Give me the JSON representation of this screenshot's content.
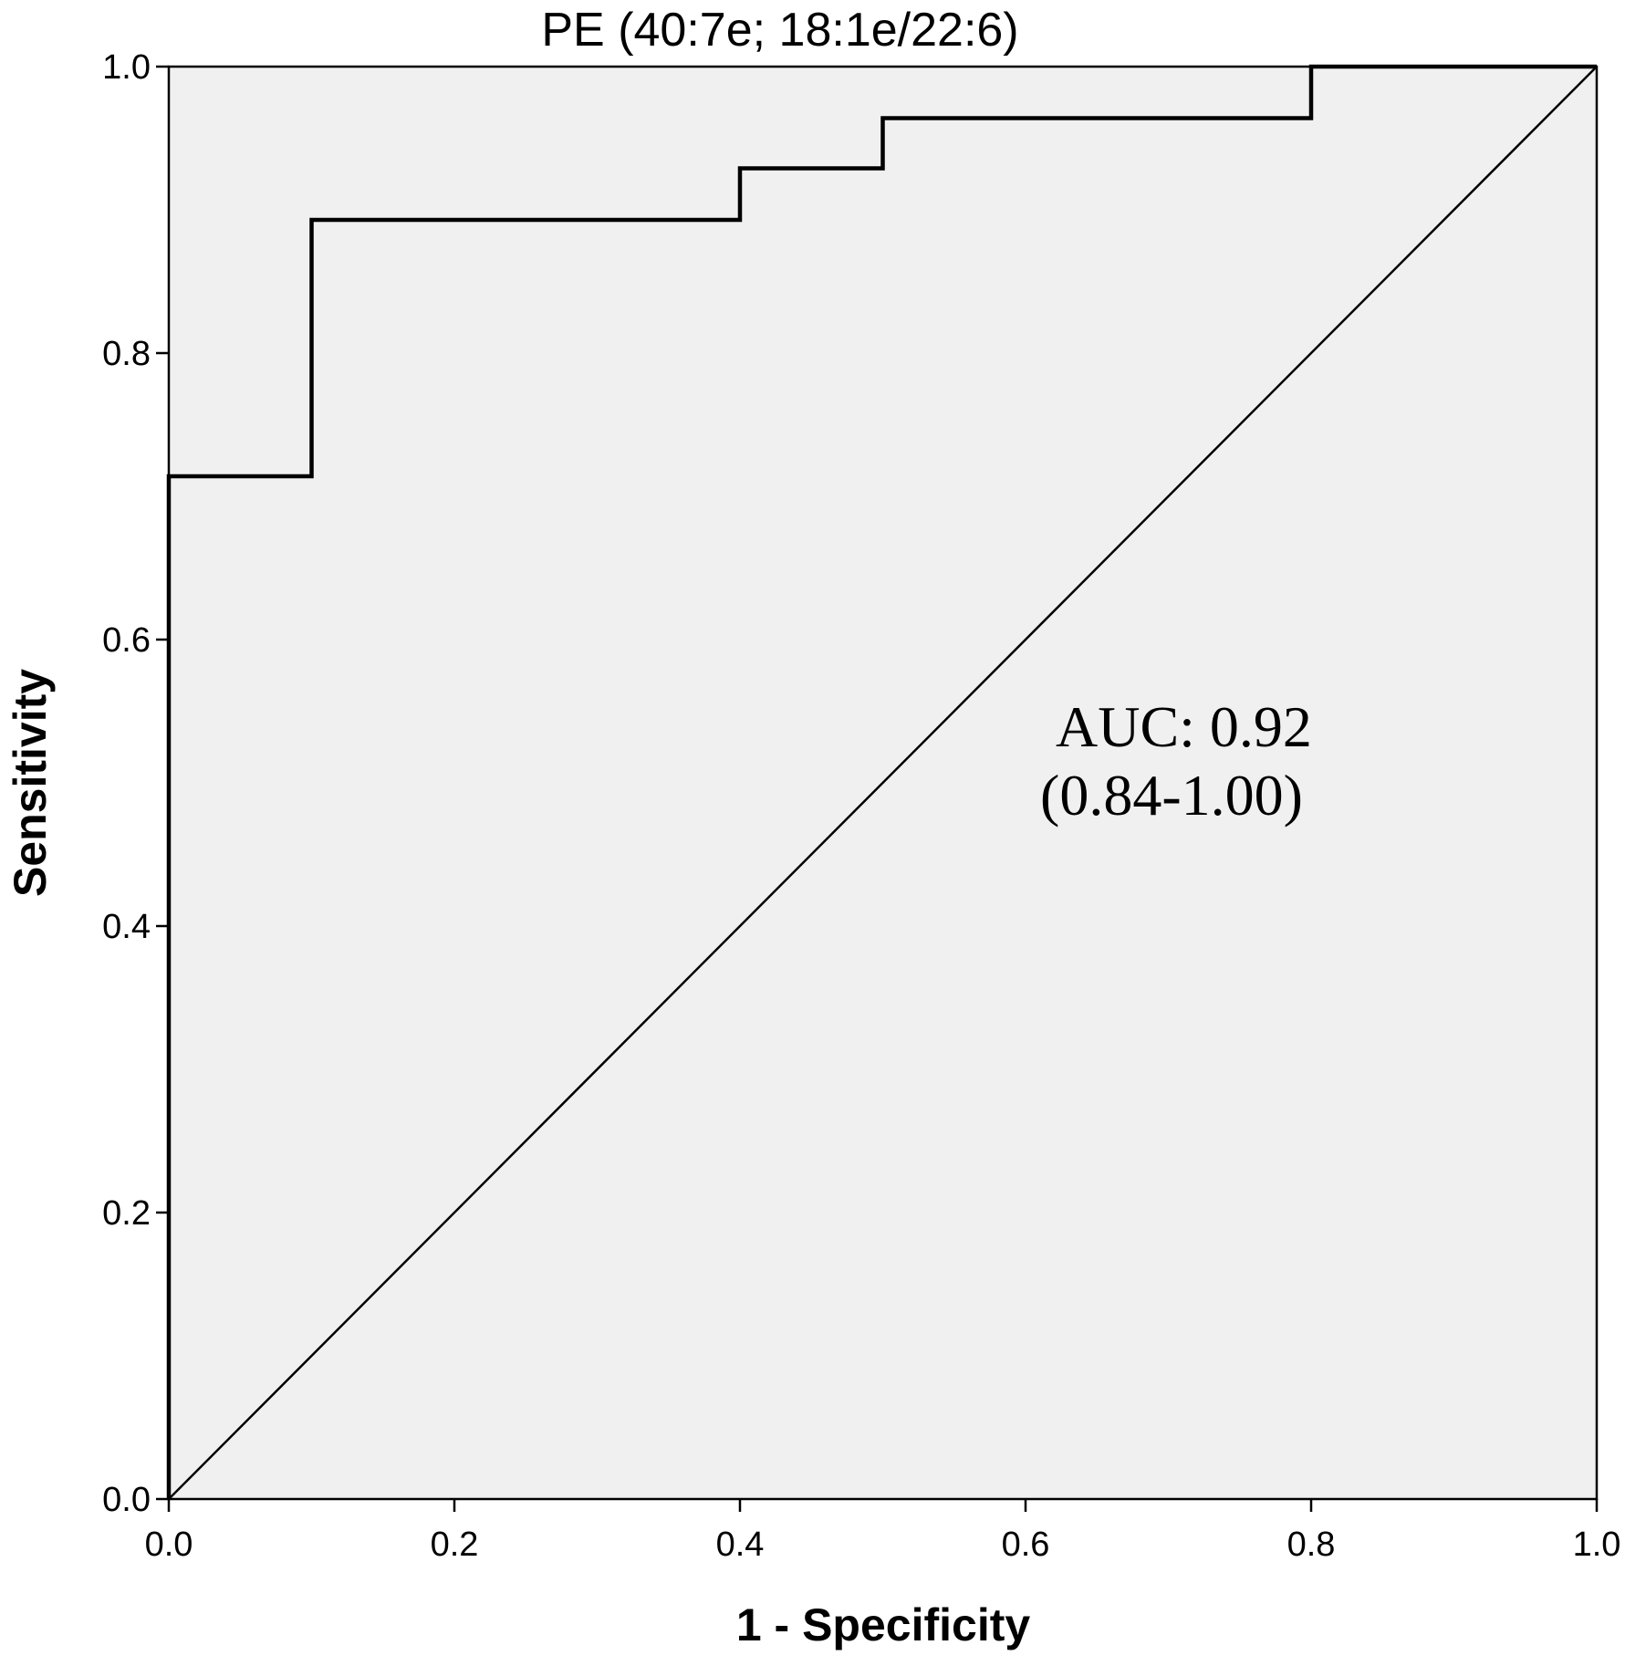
{
  "chart_data": {
    "type": "line",
    "title": "PE (40:7e; 18:1e/22:6)",
    "xlabel": "1 - Specificity",
    "ylabel": "Sensitivity",
    "xlim": [
      0,
      1
    ],
    "ylim": [
      0,
      1
    ],
    "x_ticks": [
      "0.0",
      "0.2",
      "0.4",
      "0.6",
      "0.8",
      "1.0"
    ],
    "y_ticks": [
      "0.0",
      "0.2",
      "0.4",
      "0.6",
      "0.8",
      "1.0"
    ],
    "grid": false,
    "series": [
      {
        "x": [
          0.0,
          0.0,
          0.1,
          0.1,
          0.4,
          0.4,
          0.5,
          0.5,
          0.8,
          0.8,
          1.0
        ],
        "y": [
          0.0,
          0.714,
          0.714,
          0.893,
          0.893,
          0.929,
          0.929,
          0.964,
          0.964,
          1.0,
          1.0
        ]
      },
      {
        "x": [
          0.0,
          1.0
        ],
        "y": [
          0.0,
          1.0
        ]
      }
    ],
    "annotations": [
      "AUC: 0.92",
      "(0.84-1.00)"
    ]
  },
  "colors": {
    "plot_background": "#f0f0f0",
    "line": "#000000",
    "frame": "#000000"
  }
}
